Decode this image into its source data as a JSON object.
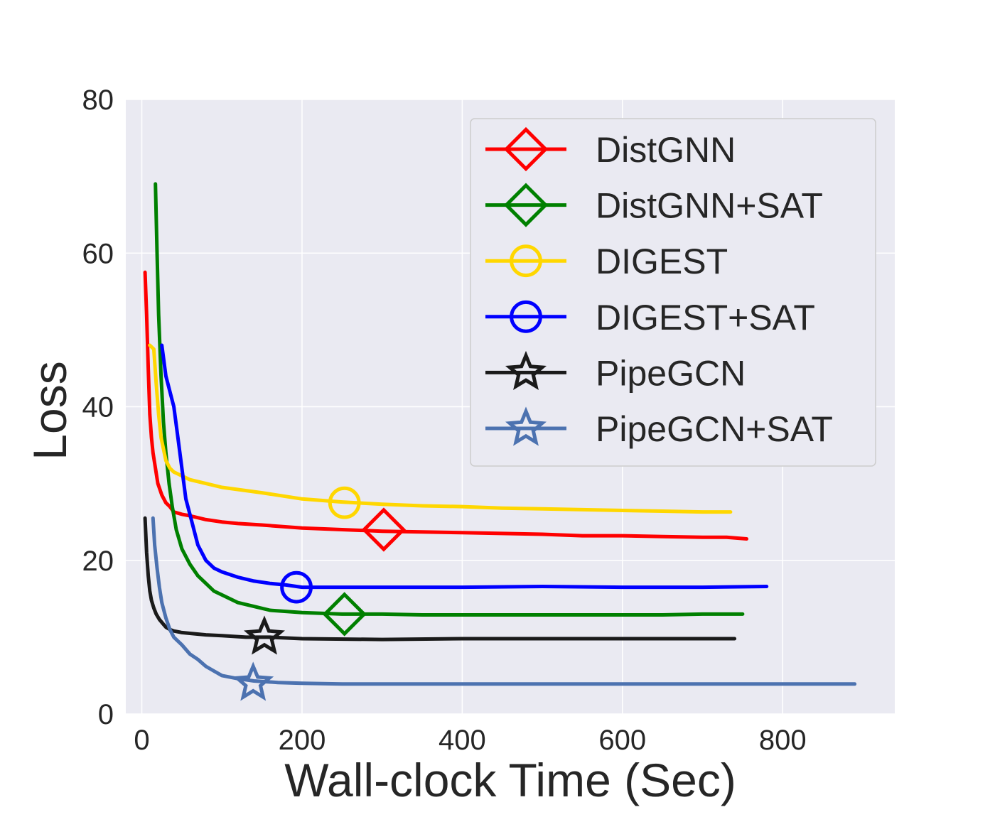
{
  "chart_data": {
    "type": "line",
    "title": "",
    "xlabel": "Wall-clock Time (Sec)",
    "ylabel": "Loss",
    "xlim": [
      -20,
      940
    ],
    "ylim": [
      0,
      80
    ],
    "xticks": [
      0,
      200,
      400,
      600,
      800
    ],
    "yticks": [
      0,
      20,
      40,
      60,
      80
    ],
    "xtick_labels": [
      "0",
      "200",
      "400",
      "600",
      "800"
    ],
    "ytick_labels": [
      "0",
      "20",
      "40",
      "60",
      "80"
    ],
    "grid": true,
    "legend_position": "top-right",
    "series": [
      {
        "name": "DistGNN",
        "color": "#ff0000",
        "marker": "diamond",
        "marker_at": [
          302,
          24
        ],
        "x": [
          4,
          6,
          8,
          10,
          12,
          14,
          17,
          20,
          25,
          30,
          35,
          40,
          50,
          60,
          80,
          100,
          120,
          150,
          200,
          250,
          300,
          350,
          400,
          450,
          500,
          550,
          600,
          650,
          700,
          730,
          755
        ],
        "y": [
          57.5,
          52,
          45,
          39,
          36,
          34,
          32,
          30,
          28.5,
          27.5,
          27,
          26.3,
          26,
          25.8,
          25.3,
          25,
          24.8,
          24.6,
          24.2,
          24,
          23.8,
          23.7,
          23.6,
          23.5,
          23.4,
          23.2,
          23.2,
          23.1,
          23,
          23,
          22.8
        ]
      },
      {
        "name": "DistGNN+SAT",
        "color": "#008000",
        "marker": "diamond",
        "marker_at": [
          253,
          13
        ],
        "x": [
          17,
          19,
          21,
          24,
          27,
          30,
          34,
          38,
          43,
          50,
          60,
          70,
          80,
          90,
          100,
          120,
          140,
          160,
          200,
          250,
          300,
          350,
          400,
          450,
          500,
          550,
          600,
          650,
          700,
          750
        ],
        "y": [
          69,
          60,
          52,
          44,
          38,
          34,
          30,
          27,
          24,
          21.5,
          19.5,
          18,
          17,
          16,
          15.5,
          14.5,
          14,
          13.5,
          13.2,
          13,
          13,
          12.9,
          12.9,
          12.9,
          12.9,
          12.9,
          12.9,
          12.9,
          13,
          13
        ]
      },
      {
        "name": "DIGEST",
        "color": "#ffd700",
        "marker": "circle",
        "marker_at": [
          253,
          27.5
        ],
        "x": [
          10,
          15,
          18,
          21,
          24,
          27,
          30,
          35,
          40,
          50,
          60,
          80,
          100,
          150,
          200,
          250,
          300,
          350,
          400,
          450,
          500,
          550,
          600,
          650,
          700,
          735
        ],
        "y": [
          48,
          47.5,
          43,
          39,
          36,
          34.5,
          33,
          32,
          31.5,
          31,
          30.5,
          30,
          29.5,
          28.8,
          28,
          27.6,
          27.3,
          27.1,
          27,
          26.8,
          26.7,
          26.6,
          26.5,
          26.4,
          26.3,
          26.3
        ]
      },
      {
        "name": "DIGEST+SAT",
        "color": "#0000ff",
        "marker": "circle",
        "marker_at": [
          193,
          16.5
        ],
        "x": [
          25,
          30,
          35,
          40,
          45,
          50,
          55,
          60,
          65,
          70,
          80,
          90,
          100,
          120,
          140,
          160,
          180,
          200,
          250,
          300,
          400,
          500,
          600,
          700,
          780
        ],
        "y": [
          48,
          44,
          42,
          40,
          36,
          32,
          28,
          26,
          24,
          22,
          20,
          19,
          18.5,
          17.8,
          17.3,
          17,
          16.8,
          16.5,
          16.5,
          16.5,
          16.5,
          16.6,
          16.5,
          16.5,
          16.6
        ]
      },
      {
        "name": "PipeGCN",
        "color": "#1a1a1a",
        "marker": "star",
        "marker_at": [
          153,
          10
        ],
        "x": [
          4,
          6,
          8,
          10,
          12,
          15,
          18,
          22,
          26,
          30,
          35,
          40,
          50,
          60,
          80,
          100,
          130,
          160,
          200,
          300,
          400,
          500,
          600,
          700,
          740
        ],
        "y": [
          25.5,
          21,
          18,
          16,
          14.8,
          13.8,
          13,
          12.3,
          11.8,
          11.3,
          11,
          10.8,
          10.6,
          10.5,
          10.3,
          10.2,
          10,
          10,
          9.8,
          9.7,
          9.8,
          9.8,
          9.8,
          9.8,
          9.8
        ]
      },
      {
        "name": "PipeGCN+SAT",
        "color": "#4c72b0",
        "marker": "star",
        "marker_at": [
          139,
          4
        ],
        "x": [
          14,
          16,
          19,
          22,
          25,
          30,
          35,
          40,
          50,
          60,
          70,
          80,
          90,
          100,
          120,
          140,
          170,
          200,
          250,
          300,
          400,
          500,
          600,
          700,
          800,
          890
        ],
        "y": [
          25.5,
          22,
          19,
          16.5,
          14.5,
          12.5,
          11,
          10,
          9,
          7.8,
          7.1,
          6.2,
          5.6,
          5,
          4.6,
          4.3,
          4.1,
          4,
          3.9,
          3.9,
          3.9,
          3.9,
          3.9,
          3.9,
          3.9,
          3.9
        ]
      }
    ]
  }
}
